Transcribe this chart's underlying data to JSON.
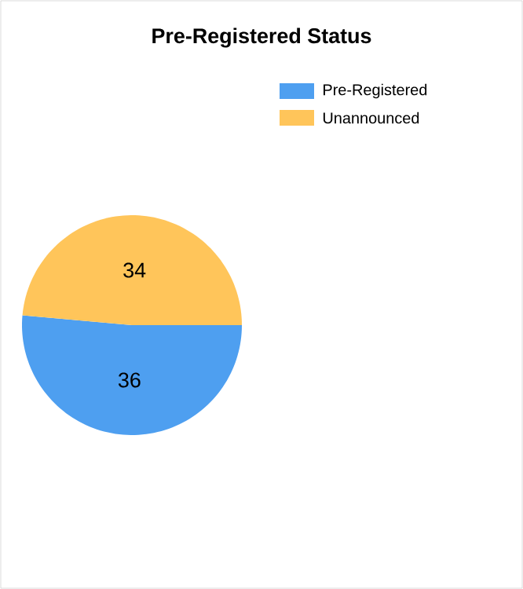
{
  "chart_data": {
    "type": "pie",
    "title": "Pre-Registered Status",
    "categories": [
      "Pre-Registered",
      "Unannounced"
    ],
    "values": [
      36,
      34
    ],
    "colors": [
      "#4e9ff0",
      "#ffc55a"
    ],
    "data_labels": true,
    "legend": "top right"
  }
}
